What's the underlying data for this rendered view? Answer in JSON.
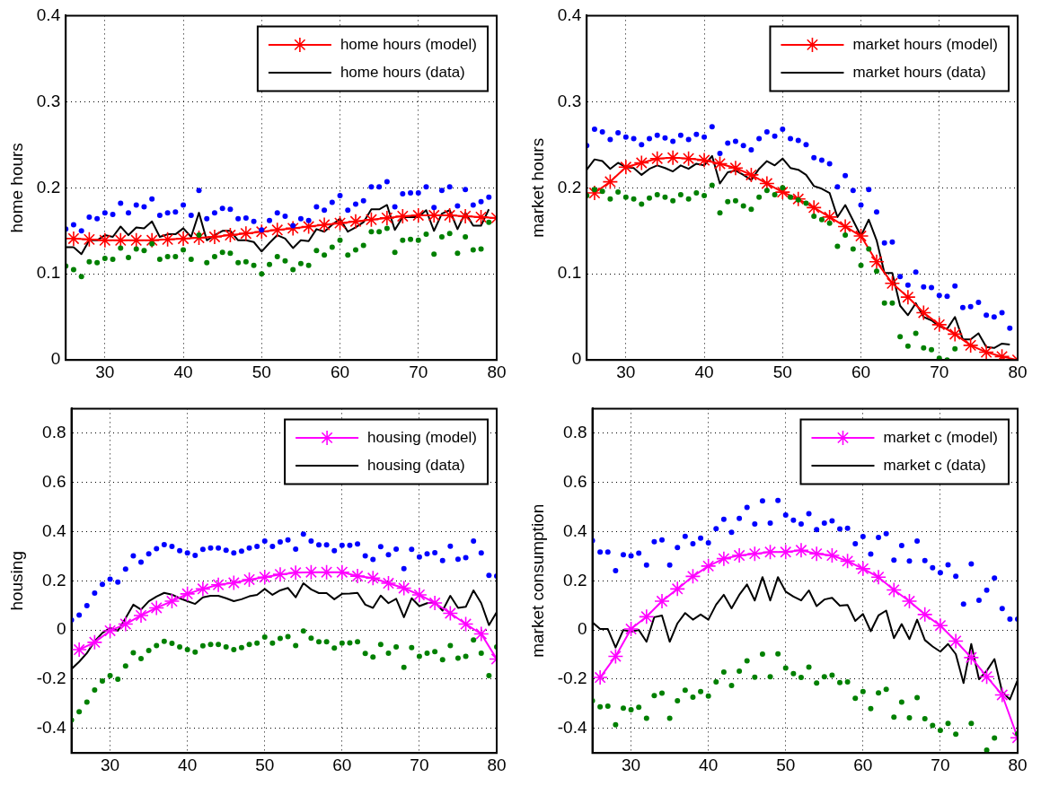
{
  "chart_data": [
    {
      "type": "line",
      "ylabel": "home hours",
      "xlim": [
        25,
        80
      ],
      "xticks": [
        30,
        40,
        50,
        60,
        70,
        80
      ],
      "ylim": [
        0,
        0.4
      ],
      "yticks": [
        0,
        0.1,
        0.2,
        0.3,
        0.4
      ],
      "grid": true,
      "legend": "top right",
      "series": [
        {
          "name": "home hours (model)",
          "type": "line",
          "color": "#ff0000",
          "marker": "cross",
          "line_style": "solid",
          "x": [
            26,
            28,
            30,
            32,
            34,
            36,
            38,
            40,
            42,
            44,
            46,
            48,
            50,
            52,
            54,
            56,
            58,
            60,
            62,
            64,
            66,
            68,
            70,
            72,
            74,
            76,
            78,
            80
          ],
          "values": [
            0.141,
            0.14,
            0.139,
            0.139,
            0.139,
            0.139,
            0.14,
            0.141,
            0.142,
            0.143,
            0.145,
            0.147,
            0.149,
            0.151,
            0.153,
            0.155,
            0.157,
            0.159,
            0.161,
            0.163,
            0.165,
            0.167,
            0.168,
            0.168,
            0.168,
            0.167,
            0.166,
            0.165
          ]
        },
        {
          "name": "home hours (data)",
          "type": "line",
          "color": "#000000",
          "marker": "none",
          "line_style": "solid",
          "x": [
            25,
            26,
            27,
            28,
            29,
            30,
            31,
            32,
            33,
            34,
            35,
            36,
            37,
            38,
            39,
            40,
            41,
            42,
            43,
            44,
            45,
            46,
            47,
            48,
            49,
            50,
            51,
            52,
            53,
            54,
            55,
            56,
            57,
            58,
            59,
            60,
            61,
            62,
            63,
            64,
            65,
            66,
            67,
            68,
            69,
            70,
            71,
            72,
            73,
            74,
            75,
            76,
            77,
            78,
            79
          ],
          "values": [
            0.131,
            0.131,
            0.123,
            0.139,
            0.139,
            0.145,
            0.143,
            0.155,
            0.145,
            0.154,
            0.153,
            0.161,
            0.143,
            0.146,
            0.146,
            0.153,
            0.143,
            0.171,
            0.139,
            0.145,
            0.15,
            0.15,
            0.139,
            0.139,
            0.137,
            0.126,
            0.136,
            0.145,
            0.141,
            0.13,
            0.139,
            0.138,
            0.152,
            0.149,
            0.157,
            0.164,
            0.149,
            0.154,
            0.16,
            0.175,
            0.175,
            0.18,
            0.151,
            0.166,
            0.166,
            0.166,
            0.174,
            0.15,
            0.17,
            0.174,
            0.152,
            0.171,
            0.156,
            0.156,
            0.175
          ]
        },
        {
          "type": "scatter",
          "color": "#0000ff",
          "marker": "circle",
          "x": [
            25,
            26,
            27,
            28,
            29,
            30,
            31,
            32,
            33,
            34,
            35,
            36,
            37,
            38,
            39,
            40,
            41,
            42,
            43,
            44,
            45,
            46,
            47,
            48,
            49,
            50,
            51,
            52,
            53,
            54,
            55,
            56,
            57,
            58,
            59,
            60,
            61,
            62,
            63,
            64,
            65,
            66,
            67,
            68,
            69,
            70,
            71,
            72,
            73,
            74,
            75,
            76,
            77,
            78,
            79
          ],
          "values": [
            0.152,
            0.157,
            0.15,
            0.166,
            0.164,
            0.171,
            0.169,
            0.182,
            0.171,
            0.18,
            0.178,
            0.187,
            0.168,
            0.171,
            0.172,
            0.18,
            0.168,
            0.197,
            0.164,
            0.171,
            0.176,
            0.175,
            0.164,
            0.165,
            0.161,
            0.151,
            0.162,
            0.171,
            0.167,
            0.156,
            0.164,
            0.162,
            0.178,
            0.174,
            0.183,
            0.191,
            0.174,
            0.181,
            0.185,
            0.201,
            0.201,
            0.207,
            0.178,
            0.193,
            0.194,
            0.194,
            0.201,
            0.177,
            0.197,
            0.201,
            0.179,
            0.198,
            0.18,
            0.184,
            0.189
          ]
        },
        {
          "type": "scatter",
          "color": "#008000",
          "marker": "circle",
          "x": [
            25,
            26,
            27,
            28,
            29,
            30,
            31,
            32,
            33,
            34,
            35,
            36,
            37,
            38,
            39,
            40,
            41,
            42,
            43,
            44,
            45,
            46,
            47,
            48,
            49,
            50,
            51,
            52,
            53,
            54,
            55,
            56,
            57,
            58,
            59,
            60,
            61,
            62,
            63,
            64,
            65,
            66,
            67,
            68,
            69,
            70,
            71,
            72,
            73,
            74,
            75,
            76,
            77,
            78,
            79
          ],
          "values": [
            0.109,
            0.105,
            0.097,
            0.114,
            0.113,
            0.118,
            0.117,
            0.13,
            0.119,
            0.129,
            0.127,
            0.135,
            0.117,
            0.12,
            0.12,
            0.128,
            0.117,
            0.145,
            0.113,
            0.12,
            0.125,
            0.124,
            0.113,
            0.114,
            0.11,
            0.1,
            0.111,
            0.12,
            0.115,
            0.105,
            0.112,
            0.11,
            0.127,
            0.122,
            0.131,
            0.139,
            0.122,
            0.128,
            0.133,
            0.149,
            0.149,
            0.153,
            0.125,
            0.139,
            0.14,
            0.139,
            0.146,
            0.123,
            0.143,
            0.147,
            0.124,
            0.143,
            0.128,
            0.129,
            0.16
          ]
        }
      ]
    },
    {
      "type": "line",
      "ylabel": "market hours",
      "xlim": [
        25,
        80
      ],
      "xticks": [
        30,
        40,
        50,
        60,
        70,
        80
      ],
      "ylim": [
        0,
        0.4
      ],
      "yticks": [
        0,
        0.1,
        0.2,
        0.3,
        0.4
      ],
      "grid": true,
      "legend": "top right",
      "series": [
        {
          "name": "market hours (model)",
          "type": "line",
          "color": "#ff0000",
          "marker": "cross",
          "line_style": "solid",
          "x": [
            26,
            28,
            30,
            32,
            34,
            36,
            38,
            40,
            42,
            44,
            46,
            48,
            50,
            52,
            54,
            56,
            58,
            60,
            62,
            64,
            66,
            68,
            70,
            72,
            74,
            76,
            78,
            80
          ],
          "values": [
            0.194,
            0.207,
            0.224,
            0.229,
            0.234,
            0.235,
            0.234,
            0.232,
            0.228,
            0.223,
            0.215,
            0.205,
            0.195,
            0.187,
            0.177,
            0.166,
            0.155,
            0.144,
            0.114,
            0.089,
            0.073,
            0.055,
            0.041,
            0.03,
            0.017,
            0.009,
            0.004,
            0.0
          ]
        },
        {
          "name": "market hours (data)",
          "type": "line",
          "color": "#000000",
          "marker": "none",
          "line_style": "solid",
          "x": [
            25,
            26,
            27,
            28,
            29,
            30,
            31,
            32,
            33,
            34,
            35,
            36,
            37,
            38,
            39,
            40,
            41,
            42,
            43,
            44,
            45,
            46,
            47,
            48,
            49,
            50,
            51,
            52,
            53,
            54,
            55,
            56,
            57,
            58,
            59,
            60,
            61,
            62,
            63,
            64,
            65,
            66,
            67,
            68,
            69,
            70,
            71,
            72,
            73,
            74,
            75,
            76,
            77,
            78,
            79
          ],
          "values": [
            0.221,
            0.233,
            0.231,
            0.222,
            0.229,
            0.224,
            0.223,
            0.215,
            0.222,
            0.226,
            0.223,
            0.219,
            0.226,
            0.222,
            0.228,
            0.226,
            0.237,
            0.205,
            0.218,
            0.22,
            0.215,
            0.209,
            0.222,
            0.231,
            0.226,
            0.234,
            0.223,
            0.221,
            0.215,
            0.202,
            0.199,
            0.194,
            0.166,
            0.18,
            0.162,
            0.144,
            0.163,
            0.139,
            0.101,
            0.101,
            0.063,
            0.052,
            0.066,
            0.05,
            0.046,
            0.039,
            0.036,
            0.05,
            0.024,
            0.024,
            0.031,
            0.015,
            0.014,
            0.019,
            0.018
          ]
        },
        {
          "type": "scatter",
          "color": "#0000ff",
          "marker": "circle",
          "x": [
            25,
            26,
            27,
            28,
            29,
            30,
            31,
            32,
            33,
            34,
            35,
            36,
            37,
            38,
            39,
            40,
            41,
            42,
            43,
            44,
            45,
            46,
            47,
            48,
            49,
            50,
            51,
            52,
            53,
            54,
            55,
            56,
            57,
            58,
            59,
            60,
            61,
            62,
            63,
            64,
            65,
            66,
            67,
            68,
            69,
            70,
            71,
            72,
            73,
            74,
            75,
            76,
            77,
            78,
            79
          ],
          "values": [
            0.249,
            0.268,
            0.265,
            0.256,
            0.264,
            0.259,
            0.257,
            0.25,
            0.257,
            0.261,
            0.258,
            0.254,
            0.261,
            0.256,
            0.262,
            0.259,
            0.271,
            0.24,
            0.252,
            0.254,
            0.249,
            0.244,
            0.257,
            0.265,
            0.26,
            0.268,
            0.257,
            0.255,
            0.25,
            0.235,
            0.232,
            0.228,
            0.201,
            0.214,
            0.197,
            0.18,
            0.198,
            0.172,
            0.136,
            0.137,
            0.097,
            0.087,
            0.102,
            0.085,
            0.084,
            0.075,
            0.074,
            0.086,
            0.061,
            0.062,
            0.067,
            0.052,
            0.05,
            0.055,
            0.037
          ]
        },
        {
          "type": "scatter",
          "color": "#008000",
          "marker": "circle",
          "x": [
            25,
            26,
            27,
            28,
            29,
            30,
            31,
            32,
            33,
            34,
            35,
            36,
            37,
            38,
            39,
            40,
            41,
            42,
            43,
            44,
            45,
            46,
            47,
            48,
            49,
            50,
            51,
            52,
            53,
            54,
            55,
            56,
            57,
            58,
            59,
            60,
            61,
            62,
            63,
            64,
            65,
            66,
            67,
            68,
            69,
            70,
            71,
            72
          ],
          "values": [
            0.191,
            0.198,
            0.196,
            0.187,
            0.195,
            0.189,
            0.187,
            0.181,
            0.188,
            0.192,
            0.189,
            0.185,
            0.192,
            0.187,
            0.194,
            0.191,
            0.203,
            0.171,
            0.184,
            0.185,
            0.179,
            0.175,
            0.189,
            0.197,
            0.192,
            0.2,
            0.189,
            0.186,
            0.182,
            0.167,
            0.163,
            0.159,
            0.132,
            0.145,
            0.129,
            0.11,
            0.129,
            0.103,
            0.066,
            0.066,
            0.027,
            0.016,
            0.031,
            0.014,
            0.012,
            0.002,
            0.0,
            0.013
          ]
        }
      ]
    },
    {
      "type": "line",
      "ylabel": "housing",
      "xlim": [
        25,
        80
      ],
      "xticks": [
        30,
        40,
        50,
        60,
        70,
        80
      ],
      "ylim": [
        -0.5,
        0.9
      ],
      "yticks": [
        -0.4,
        -0.2,
        0,
        0.2,
        0.4,
        0.6,
        0.8
      ],
      "grid": true,
      "legend": "top right",
      "series": [
        {
          "name": "housing (model)",
          "type": "line",
          "color": "#ff00ff",
          "marker": "cross",
          "line_style": "solid",
          "x": [
            26,
            28,
            30,
            32,
            34,
            36,
            38,
            40,
            42,
            44,
            46,
            48,
            50,
            52,
            54,
            56,
            58,
            60,
            62,
            64,
            66,
            68,
            70,
            72,
            74,
            76,
            78,
            80
          ],
          "values": [
            -0.08,
            -0.05,
            -0.003,
            0.024,
            0.059,
            0.09,
            0.117,
            0.147,
            0.167,
            0.184,
            0.192,
            0.205,
            0.215,
            0.226,
            0.233,
            0.235,
            0.235,
            0.235,
            0.219,
            0.211,
            0.19,
            0.17,
            0.143,
            0.11,
            0.068,
            0.024,
            -0.016,
            -0.118
          ]
        },
        {
          "name": "housing (data)",
          "type": "line",
          "color": "#000000",
          "marker": "none",
          "line_style": "solid",
          "x": [
            25,
            26,
            27,
            28,
            29,
            30,
            31,
            32,
            33,
            34,
            35,
            36,
            37,
            38,
            39,
            40,
            41,
            42,
            43,
            44,
            45,
            46,
            47,
            48,
            49,
            50,
            51,
            52,
            53,
            54,
            55,
            56,
            57,
            58,
            59,
            60,
            61,
            62,
            63,
            64,
            65,
            66,
            67,
            68,
            69,
            70,
            71,
            72,
            73,
            74,
            75,
            76,
            77,
            78,
            79,
            80
          ],
          "values": [
            -0.159,
            -0.129,
            -0.094,
            -0.046,
            -0.012,
            0.008,
            -0.003,
            0.048,
            0.103,
            0.083,
            0.117,
            0.136,
            0.151,
            0.144,
            0.129,
            0.117,
            0.106,
            0.133,
            0.139,
            0.139,
            0.129,
            0.117,
            0.125,
            0.137,
            0.143,
            0.167,
            0.143,
            0.161,
            0.171,
            0.133,
            0.19,
            0.165,
            0.15,
            0.15,
            0.125,
            0.147,
            0.148,
            0.151,
            0.103,
            0.09,
            0.14,
            0.109,
            0.127,
            0.052,
            0.129,
            0.097,
            0.109,
            0.113,
            0.079,
            0.139,
            0.09,
            0.094,
            0.161,
            0.109,
            0.02,
            0.072
          ]
        },
        {
          "type": "scatter",
          "color": "#0000ff",
          "marker": "circle",
          "x": [
            25,
            26,
            27,
            28,
            29,
            30,
            31,
            32,
            33,
            34,
            35,
            36,
            37,
            38,
            39,
            40,
            41,
            42,
            43,
            44,
            45,
            46,
            47,
            48,
            49,
            50,
            51,
            52,
            53,
            54,
            55,
            56,
            57,
            58,
            59,
            60,
            61,
            62,
            63,
            64,
            65,
            66,
            67,
            68,
            69,
            70,
            71,
            72,
            73,
            74,
            75,
            76,
            77,
            78,
            79,
            80
          ],
          "values": [
            0.041,
            0.061,
            0.099,
            0.15,
            0.186,
            0.207,
            0.195,
            0.248,
            0.301,
            0.276,
            0.31,
            0.331,
            0.347,
            0.34,
            0.322,
            0.313,
            0.303,
            0.328,
            0.333,
            0.333,
            0.324,
            0.313,
            0.321,
            0.333,
            0.34,
            0.362,
            0.34,
            0.358,
            0.366,
            0.329,
            0.39,
            0.362,
            0.346,
            0.346,
            0.322,
            0.344,
            0.344,
            0.35,
            0.301,
            0.287,
            0.339,
            0.306,
            0.329,
            0.249,
            0.328,
            0.297,
            0.31,
            0.314,
            0.282,
            0.341,
            0.288,
            0.294,
            0.362,
            0.313,
            0.222,
            0.219
          ]
        },
        {
          "type": "scatter",
          "color": "#008000",
          "marker": "circle",
          "x": [
            25,
            26,
            27,
            28,
            29,
            30,
            31,
            32,
            33,
            34,
            35,
            36,
            37,
            38,
            39,
            40,
            41,
            42,
            43,
            44,
            45,
            46,
            47,
            48,
            49,
            50,
            51,
            52,
            53,
            54,
            55,
            56,
            57,
            58,
            59,
            60,
            61,
            62,
            63,
            64,
            65,
            66,
            67,
            68,
            69,
            70,
            71,
            72,
            73,
            74,
            75,
            76,
            77,
            78,
            79,
            80
          ],
          "values": [
            -0.366,
            -0.332,
            -0.293,
            -0.244,
            -0.207,
            -0.186,
            -0.2,
            -0.146,
            -0.093,
            -0.116,
            -0.083,
            -0.063,
            -0.046,
            -0.054,
            -0.069,
            -0.08,
            -0.09,
            -0.064,
            -0.059,
            -0.059,
            -0.069,
            -0.08,
            -0.072,
            -0.059,
            -0.053,
            -0.029,
            -0.053,
            -0.034,
            -0.027,
            -0.063,
            -0.004,
            -0.033,
            -0.048,
            -0.048,
            -0.073,
            -0.053,
            -0.052,
            -0.048,
            -0.095,
            -0.11,
            -0.059,
            -0.094,
            -0.069,
            -0.152,
            -0.072,
            -0.107,
            -0.094,
            -0.088,
            -0.121,
            -0.063,
            -0.114,
            -0.107,
            -0.041,
            -0.094,
            -0.186,
            -0.069
          ]
        }
      ]
    },
    {
      "type": "line",
      "ylabel": "market consumption",
      "xlim": [
        25,
        80
      ],
      "xticks": [
        30,
        40,
        50,
        60,
        70,
        80
      ],
      "ylim": [
        -0.5,
        0.9
      ],
      "yticks": [
        -0.4,
        -0.2,
        0,
        0.2,
        0.4,
        0.6,
        0.8
      ],
      "grid": true,
      "legend": "top right",
      "series": [
        {
          "name": "market c (model)",
          "type": "line",
          "color": "#ff00ff",
          "marker": "cross",
          "line_style": "solid",
          "x": [
            26,
            28,
            30,
            32,
            34,
            36,
            38,
            40,
            42,
            44,
            46,
            48,
            50,
            52,
            54,
            56,
            58,
            60,
            62,
            64,
            66,
            68,
            70,
            72,
            74,
            76,
            78,
            80
          ],
          "values": [
            -0.193,
            -0.107,
            0.004,
            0.054,
            0.117,
            0.167,
            0.218,
            0.26,
            0.29,
            0.303,
            0.31,
            0.317,
            0.317,
            0.324,
            0.31,
            0.303,
            0.28,
            0.249,
            0.215,
            0.163,
            0.117,
            0.063,
            0.018,
            -0.045,
            -0.112,
            -0.19,
            -0.264,
            -0.438
          ]
        },
        {
          "name": "market c (data)",
          "type": "line",
          "color": "#000000",
          "marker": "none",
          "line_style": "solid",
          "x": [
            25,
            26,
            27,
            28,
            29,
            30,
            31,
            32,
            33,
            34,
            35,
            36,
            37,
            38,
            39,
            40,
            41,
            42,
            43,
            44,
            45,
            46,
            47,
            48,
            49,
            50,
            51,
            52,
            53,
            54,
            55,
            56,
            57,
            58,
            59,
            60,
            61,
            62,
            63,
            64,
            65,
            66,
            67,
            68,
            69,
            70,
            71,
            72,
            73,
            74,
            75,
            76,
            77,
            78,
            79,
            80
          ],
          "values": [
            0.031,
            0.004,
            0.004,
            -0.071,
            0.0,
            -0.007,
            0.0,
            -0.048,
            0.052,
            0.059,
            -0.048,
            0.027,
            0.069,
            0.042,
            0.063,
            0.042,
            0.103,
            0.143,
            0.088,
            0.143,
            0.185,
            0.12,
            0.215,
            0.12,
            0.215,
            0.156,
            0.136,
            0.12,
            0.161,
            0.097,
            0.124,
            0.131,
            0.099,
            0.102,
            0.037,
            0.065,
            -0.005,
            0.059,
            0.079,
            -0.033,
            0.024,
            -0.037,
            0.042,
            -0.041,
            -0.067,
            -0.088,
            -0.057,
            -0.098,
            -0.216,
            -0.057,
            -0.2,
            -0.166,
            -0.118,
            -0.252,
            -0.282,
            -0.203
          ]
        },
        {
          "type": "scatter",
          "color": "#0000ff",
          "marker": "circle",
          "x": [
            25,
            26,
            27,
            28,
            29,
            30,
            31,
            32,
            33,
            34,
            35,
            36,
            37,
            38,
            39,
            40,
            41,
            42,
            43,
            44,
            45,
            46,
            47,
            48,
            49,
            50,
            51,
            52,
            53,
            54,
            55,
            56,
            57,
            58,
            59,
            60,
            61,
            62,
            63,
            64,
            65,
            66,
            67,
            68,
            69,
            70,
            71,
            72,
            73,
            74,
            75,
            76,
            77,
            78,
            79,
            80
          ],
          "values": [
            0.363,
            0.317,
            0.317,
            0.241,
            0.306,
            0.301,
            0.312,
            0.264,
            0.359,
            0.366,
            0.264,
            0.335,
            0.381,
            0.351,
            0.373,
            0.354,
            0.412,
            0.45,
            0.397,
            0.454,
            0.498,
            0.431,
            0.525,
            0.435,
            0.527,
            0.467,
            0.446,
            0.431,
            0.473,
            0.408,
            0.435,
            0.444,
            0.411,
            0.414,
            0.351,
            0.38,
            0.309,
            0.376,
            0.392,
            0.284,
            0.343,
            0.28,
            0.362,
            0.282,
            0.253,
            0.233,
            0.265,
            0.218,
            0.105,
            0.269,
            0.121,
            0.162,
            0.211,
            0.087,
            0.044,
            0.044
          ]
        },
        {
          "type": "scatter",
          "color": "#008000",
          "marker": "circle",
          "x": [
            25,
            26,
            27,
            28,
            29,
            30,
            31,
            32,
            33,
            34,
            35,
            36,
            37,
            38,
            39,
            40,
            41,
            42,
            43,
            44,
            45,
            46,
            47,
            48,
            49,
            50,
            51,
            52,
            53,
            54,
            55,
            56,
            57,
            58,
            59,
            60,
            61,
            62,
            63,
            64,
            65,
            66,
            67,
            68,
            69,
            70,
            71,
            72,
            74,
            76,
            77,
            80
          ],
          "values": [
            -0.288,
            -0.312,
            -0.31,
            -0.385,
            -0.318,
            -0.324,
            -0.314,
            -0.359,
            -0.267,
            -0.257,
            -0.359,
            -0.288,
            -0.245,
            -0.273,
            -0.25,
            -0.269,
            -0.211,
            -0.171,
            -0.226,
            -0.167,
            -0.125,
            -0.192,
            -0.098,
            -0.19,
            -0.097,
            -0.155,
            -0.177,
            -0.193,
            -0.151,
            -0.216,
            -0.19,
            -0.184,
            -0.214,
            -0.211,
            -0.278,
            -0.25,
            -0.32,
            -0.256,
            -0.241,
            -0.354,
            -0.293,
            -0.357,
            -0.275,
            -0.361,
            -0.388,
            -0.408,
            -0.38,
            -0.424,
            -0.38,
            -0.488,
            -0.439,
            -0.422
          ]
        }
      ]
    }
  ]
}
